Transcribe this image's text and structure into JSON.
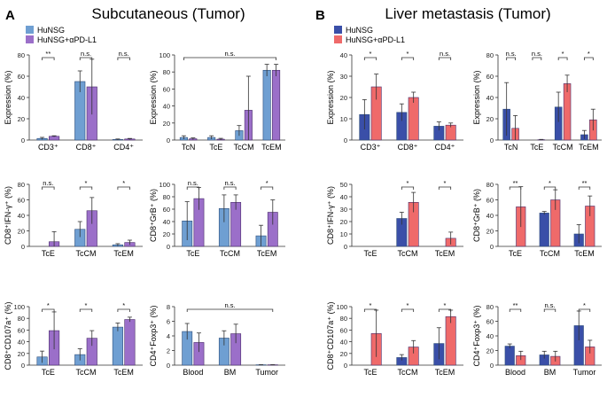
{
  "sections": {
    "A": {
      "letter": "A",
      "title": "Subcutaneous (Tumor)"
    },
    "B": {
      "letter": "B",
      "title": "Liver metastasis (Tumor)"
    }
  },
  "legends": {
    "A": [
      {
        "label": "HuNSG",
        "color": "#6f9fd2"
      },
      {
        "label": "HuNSG+αPD-L1",
        "color": "#9b6fc9"
      }
    ],
    "B": [
      {
        "label": "HuNSG",
        "color": "#3a4fa8"
      },
      {
        "label": "HuNSG+αPD-L1",
        "color": "#ef6a6a"
      }
    ]
  },
  "chart_data": [
    {
      "id": "A1",
      "type": "bar",
      "ylabel": "Expression (%)",
      "ylim": [
        0,
        80
      ],
      "yticks": [
        0,
        20,
        40,
        60,
        80
      ],
      "categories": [
        "CD3⁺",
        "CD8⁺",
        "CD4⁺"
      ],
      "series": [
        {
          "name": "HuNSG",
          "values": [
            1.5,
            55,
            0.5
          ],
          "errors": [
            1,
            10,
            0.5
          ]
        },
        {
          "name": "HuNSG+αPD-L1",
          "values": [
            3.5,
            50,
            1
          ],
          "errors": [
            0.5,
            26,
            0.5
          ]
        }
      ],
      "significance": [
        {
          "cat": 0,
          "label": "**"
        },
        {
          "cat": 1,
          "label": "n.s."
        },
        {
          "cat": 2,
          "label": "n.s."
        }
      ]
    },
    {
      "id": "A2",
      "type": "bar",
      "ylabel": "Expression (%)",
      "ylim": [
        0,
        100
      ],
      "yticks": [
        0,
        20,
        40,
        60,
        80,
        100
      ],
      "categories": [
        "TcN",
        "TcE",
        "TcCM",
        "TcEM"
      ],
      "series": [
        {
          "name": "HuNSG",
          "values": [
            3,
            3,
            11,
            82
          ],
          "errors": [
            2,
            2,
            6,
            7
          ]
        },
        {
          "name": "HuNSG+αPD-L1",
          "values": [
            1.5,
            1,
            35,
            82
          ],
          "errors": [
            1,
            1,
            40,
            7
          ]
        }
      ],
      "significance": [
        {
          "span": [
            0,
            3
          ],
          "label": "n.s."
        }
      ]
    },
    {
      "id": "A3",
      "type": "bar",
      "ylabel": "CD8⁺IFN-γ⁺ (%)",
      "ylim": [
        0,
        80
      ],
      "yticks": [
        0,
        20,
        40,
        60,
        80
      ],
      "categories": [
        "TcE",
        "TcCM",
        "TcEM"
      ],
      "series": [
        {
          "name": "HuNSG",
          "values": [
            0,
            22,
            2
          ],
          "errors": [
            0,
            10,
            1.5
          ]
        },
        {
          "name": "HuNSG+αPD-L1",
          "values": [
            6,
            46,
            5
          ],
          "errors": [
            13,
            17,
            3
          ]
        }
      ],
      "significance": [
        {
          "cat": 0,
          "label": "n.s."
        },
        {
          "cat": 1,
          "label": "*"
        },
        {
          "cat": 2,
          "label": "*"
        }
      ]
    },
    {
      "id": "A4",
      "type": "bar",
      "ylabel": "CD8⁺GrB⁺ (%)",
      "ylim": [
        0,
        100
      ],
      "yticks": [
        0,
        20,
        40,
        60,
        80,
        100
      ],
      "categories": [
        "TcE",
        "TcCM",
        "TcEM"
      ],
      "series": [
        {
          "name": "HuNSG",
          "values": [
            41,
            61,
            17
          ],
          "errors": [
            31,
            22,
            17
          ]
        },
        {
          "name": "HuNSG+αPD-L1",
          "values": [
            77,
            71,
            55
          ],
          "errors": [
            18,
            12,
            20
          ]
        }
      ],
      "significance": [
        {
          "cat": 0,
          "label": "n.s."
        },
        {
          "cat": 1,
          "label": "n.s."
        },
        {
          "cat": 2,
          "label": "*"
        }
      ]
    },
    {
      "id": "A5",
      "type": "bar",
      "ylabel": "CD8⁺CD107a⁺ (%)",
      "ylim": [
        0,
        100
      ],
      "yticks": [
        0,
        20,
        40,
        60,
        80,
        100
      ],
      "categories": [
        "TcE",
        "TcCM",
        "TcEM"
      ],
      "series": [
        {
          "name": "HuNSG",
          "values": [
            14,
            18,
            65
          ],
          "errors": [
            10,
            10,
            7
          ]
        },
        {
          "name": "HuNSG+αPD-L1",
          "values": [
            59,
            46,
            78
          ],
          "errors": [
            32,
            13,
            4
          ]
        }
      ],
      "significance": [
        {
          "cat": 0,
          "label": "*"
        },
        {
          "cat": 1,
          "label": "*"
        },
        {
          "cat": 2,
          "label": "*"
        }
      ]
    },
    {
      "id": "A6",
      "type": "bar",
      "ylabel": "CD4⁺Foxp3⁺ (%)",
      "ylim": [
        0,
        8
      ],
      "yticks": [
        0,
        2,
        4,
        6,
        8
      ],
      "categories": [
        "Blood",
        "BM",
        "Tumor"
      ],
      "series": [
        {
          "name": "HuNSG",
          "values": [
            4.6,
            3.7,
            0.05
          ],
          "errors": [
            1.1,
            1.0,
            0.02
          ]
        },
        {
          "name": "HuNSG+αPD-L1",
          "values": [
            3.1,
            4.3,
            0.05
          ],
          "errors": [
            1.3,
            1.3,
            0.02
          ]
        }
      ],
      "significance": [
        {
          "span": [
            0,
            2
          ],
          "label": "n.s."
        }
      ]
    },
    {
      "id": "B1",
      "type": "bar",
      "ylabel": "Expression (%)",
      "ylim": [
        0,
        40
      ],
      "yticks": [
        0,
        10,
        20,
        30,
        40
      ],
      "categories": [
        "CD3⁺",
        "CD8⁺",
        "CD4⁺"
      ],
      "series": [
        {
          "name": "HuNSG",
          "values": [
            12,
            13,
            6.5
          ],
          "errors": [
            7,
            4,
            2
          ]
        },
        {
          "name": "HuNSG+αPD-L1",
          "values": [
            25,
            20,
            7
          ],
          "errors": [
            6,
            2.5,
            1
          ]
        }
      ],
      "significance": [
        {
          "cat": 0,
          "label": "*"
        },
        {
          "cat": 1,
          "label": "*"
        },
        {
          "cat": 2,
          "label": "n.s."
        }
      ]
    },
    {
      "id": "B2",
      "type": "bar",
      "ylabel": "Expression (%)",
      "ylim": [
        0,
        80
      ],
      "yticks": [
        0,
        20,
        40,
        60,
        80
      ],
      "categories": [
        "TcN",
        "TcE",
        "TcCM",
        "TcEM"
      ],
      "series": [
        {
          "name": "HuNSG",
          "values": [
            29,
            0,
            31,
            5
          ],
          "errors": [
            25,
            0,
            14,
            4
          ]
        },
        {
          "name": "HuNSG+αPD-L1",
          "values": [
            11,
            0.3,
            53,
            19
          ],
          "errors": [
            12,
            0.3,
            8,
            10
          ]
        }
      ],
      "significance": [
        {
          "cat": 0,
          "label": "n.s."
        },
        {
          "cat": 1,
          "label": "n.s."
        },
        {
          "cat": 2,
          "label": "*"
        },
        {
          "cat": 3,
          "label": "*"
        }
      ]
    },
    {
      "id": "B3",
      "type": "bar",
      "ylabel": "CD8⁺IFN-γ⁺ (%)",
      "ylim": [
        0,
        50
      ],
      "yticks": [
        0,
        10,
        20,
        30,
        40,
        50
      ],
      "categories": [
        "TcE",
        "TcCM",
        "TcEM"
      ],
      "series": [
        {
          "name": "HuNSG",
          "values": [
            0,
            22.5,
            0
          ],
          "errors": [
            0,
            5,
            0
          ]
        },
        {
          "name": "HuNSG+αPD-L1",
          "values": [
            0,
            35.5,
            6.5
          ],
          "errors": [
            0,
            8,
            5
          ]
        }
      ],
      "significance": [
        {
          "cat": 1,
          "label": "*"
        },
        {
          "cat": 2,
          "label": "*"
        }
      ]
    },
    {
      "id": "B4",
      "type": "bar",
      "ylabel": "CD8⁺GrB⁺ (%)",
      "ylim": [
        0,
        80
      ],
      "yticks": [
        0,
        20,
        40,
        60,
        80
      ],
      "categories": [
        "TcE",
        "TcCM",
        "TcEM"
      ],
      "series": [
        {
          "name": "HuNSG",
          "values": [
            0,
            43,
            16
          ],
          "errors": [
            0,
            2,
            12
          ]
        },
        {
          "name": "HuNSG+αPD-L1",
          "values": [
            51,
            60,
            52
          ],
          "errors": [
            26,
            13,
            13
          ]
        }
      ],
      "significance": [
        {
          "cat": 0,
          "label": "**"
        },
        {
          "cat": 1,
          "label": "*"
        },
        {
          "cat": 2,
          "label": "**"
        }
      ]
    },
    {
      "id": "B5",
      "type": "bar",
      "ylabel": "CD8⁺CD107a⁺ (%)",
      "ylim": [
        0,
        100
      ],
      "yticks": [
        0,
        20,
        40,
        60,
        80,
        100
      ],
      "categories": [
        "TcE",
        "TcCM",
        "TcEM"
      ],
      "series": [
        {
          "name": "HuNSG",
          "values": [
            0,
            13,
            37
          ],
          "errors": [
            0,
            5,
            27
          ]
        },
        {
          "name": "HuNSG+αPD-L1",
          "values": [
            54,
            31,
            83
          ],
          "errors": [
            40,
            11,
            11
          ]
        }
      ],
      "significance": [
        {
          "cat": 0,
          "label": "*"
        },
        {
          "cat": 1,
          "label": "*"
        },
        {
          "cat": 2,
          "label": "*"
        }
      ]
    },
    {
      "id": "B6",
      "type": "bar",
      "ylabel": "CD4⁺Foxp3⁺ (%)",
      "ylim": [
        0,
        80
      ],
      "yticks": [
        0,
        20,
        40,
        60,
        80
      ],
      "categories": [
        "Blood",
        "BM",
        "Tumor"
      ],
      "series": [
        {
          "name": "HuNSG",
          "values": [
            26,
            14,
            54
          ],
          "errors": [
            3,
            5,
            20
          ]
        },
        {
          "name": "HuNSG+αPD-L1",
          "values": [
            13,
            12,
            25
          ],
          "errors": [
            6,
            7,
            9
          ]
        }
      ],
      "significance": [
        {
          "cat": 0,
          "label": "**"
        },
        {
          "cat": 1,
          "label": "n.s."
        },
        {
          "cat": 2,
          "label": "*"
        }
      ]
    }
  ]
}
